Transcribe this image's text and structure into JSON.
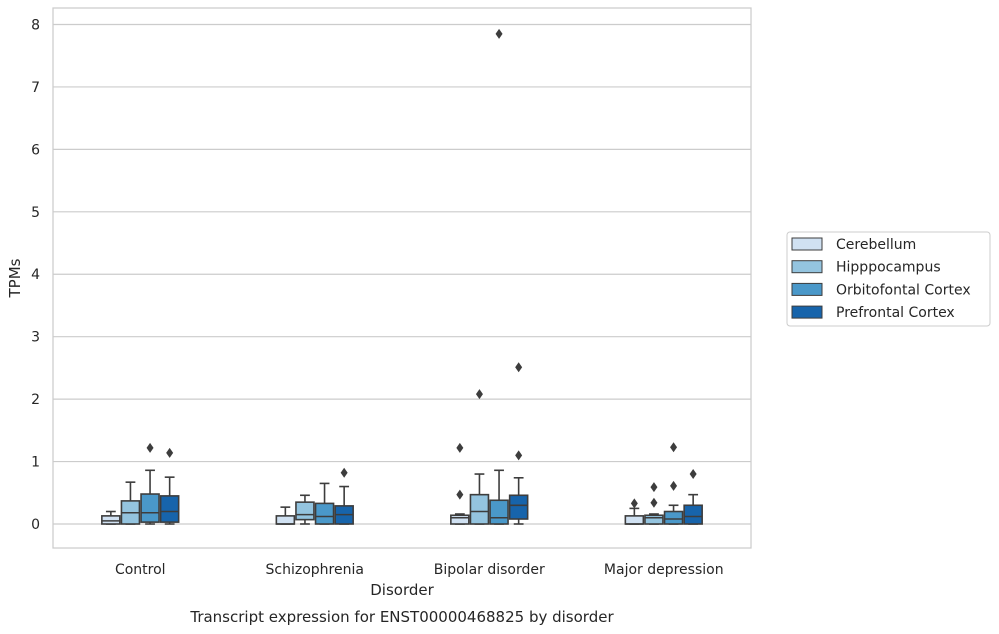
{
  "chart_data": {
    "type": "box",
    "title": "",
    "caption": "Transcript expression for ENST00000468825 by disorder",
    "xlabel": "Disorder",
    "ylabel": "TPMs",
    "ylim": [
      -0.38,
      8.25
    ],
    "yticks": [
      0,
      1,
      2,
      3,
      4,
      5,
      6,
      7,
      8
    ],
    "grid": "horizontal",
    "legend_position": "right",
    "categories": [
      "Control",
      "Schizophrenia",
      "Bipolar disorder",
      "Major depression"
    ],
    "series": [
      {
        "name": "Cerebellum",
        "color": "#d0e1f2",
        "boxes": [
          {
            "whislo": 0.0,
            "q1": 0.0,
            "med": 0.05,
            "q3": 0.13,
            "whishi": 0.2,
            "fliers": []
          },
          {
            "whislo": 0.0,
            "q1": 0.0,
            "med": 0.0,
            "q3": 0.13,
            "whishi": 0.27,
            "fliers": []
          },
          {
            "whislo": 0.0,
            "q1": 0.0,
            "med": 0.1,
            "q3": 0.14,
            "whishi": 0.16,
            "fliers": [
              0.47,
              1.22
            ]
          },
          {
            "whislo": 0.0,
            "q1": 0.0,
            "med": 0.0,
            "q3": 0.13,
            "whishi": 0.25,
            "fliers": [
              0.33
            ]
          }
        ]
      },
      {
        "name": "Hipppocampus",
        "color": "#94c4df",
        "boxes": [
          {
            "whislo": 0.0,
            "q1": 0.0,
            "med": 0.18,
            "q3": 0.37,
            "whishi": 0.67,
            "fliers": []
          },
          {
            "whislo": 0.0,
            "q1": 0.07,
            "med": 0.15,
            "q3": 0.35,
            "whishi": 0.46,
            "fliers": []
          },
          {
            "whislo": 0.0,
            "q1": 0.0,
            "med": 0.2,
            "q3": 0.47,
            "whishi": 0.8,
            "fliers": [
              2.08
            ]
          },
          {
            "whislo": 0.0,
            "q1": 0.0,
            "med": 0.1,
            "q3": 0.14,
            "whishi": 0.16,
            "fliers": [
              0.34,
              0.59
            ]
          }
        ]
      },
      {
        "name": "Orbitofontal Cortex",
        "color": "#4a98c9",
        "boxes": [
          {
            "whislo": 0.0,
            "q1": 0.03,
            "med": 0.18,
            "q3": 0.48,
            "whishi": 0.86,
            "fliers": [
              1.22
            ]
          },
          {
            "whislo": 0.0,
            "q1": 0.0,
            "med": 0.12,
            "q3": 0.33,
            "whishi": 0.65,
            "fliers": []
          },
          {
            "whislo": 0.0,
            "q1": 0.0,
            "med": 0.1,
            "q3": 0.38,
            "whishi": 0.86,
            "fliers": [
              7.85
            ]
          },
          {
            "whislo": 0.0,
            "q1": 0.0,
            "med": 0.08,
            "q3": 0.2,
            "whishi": 0.3,
            "fliers": [
              0.61,
              1.23
            ]
          }
        ]
      },
      {
        "name": "Prefrontal Cortex",
        "color": "#1764ab",
        "boxes": [
          {
            "whislo": 0.0,
            "q1": 0.03,
            "med": 0.2,
            "q3": 0.45,
            "whishi": 0.75,
            "fliers": [
              1.14
            ]
          },
          {
            "whislo": 0.0,
            "q1": 0.0,
            "med": 0.15,
            "q3": 0.29,
            "whishi": 0.6,
            "fliers": [
              0.82
            ]
          },
          {
            "whislo": 0.0,
            "q1": 0.08,
            "med": 0.3,
            "q3": 0.46,
            "whishi": 0.74,
            "fliers": [
              1.1,
              2.51
            ]
          },
          {
            "whislo": 0.0,
            "q1": 0.0,
            "med": 0.12,
            "q3": 0.3,
            "whishi": 0.47,
            "fliers": [
              0.8
            ]
          }
        ]
      }
    ]
  }
}
